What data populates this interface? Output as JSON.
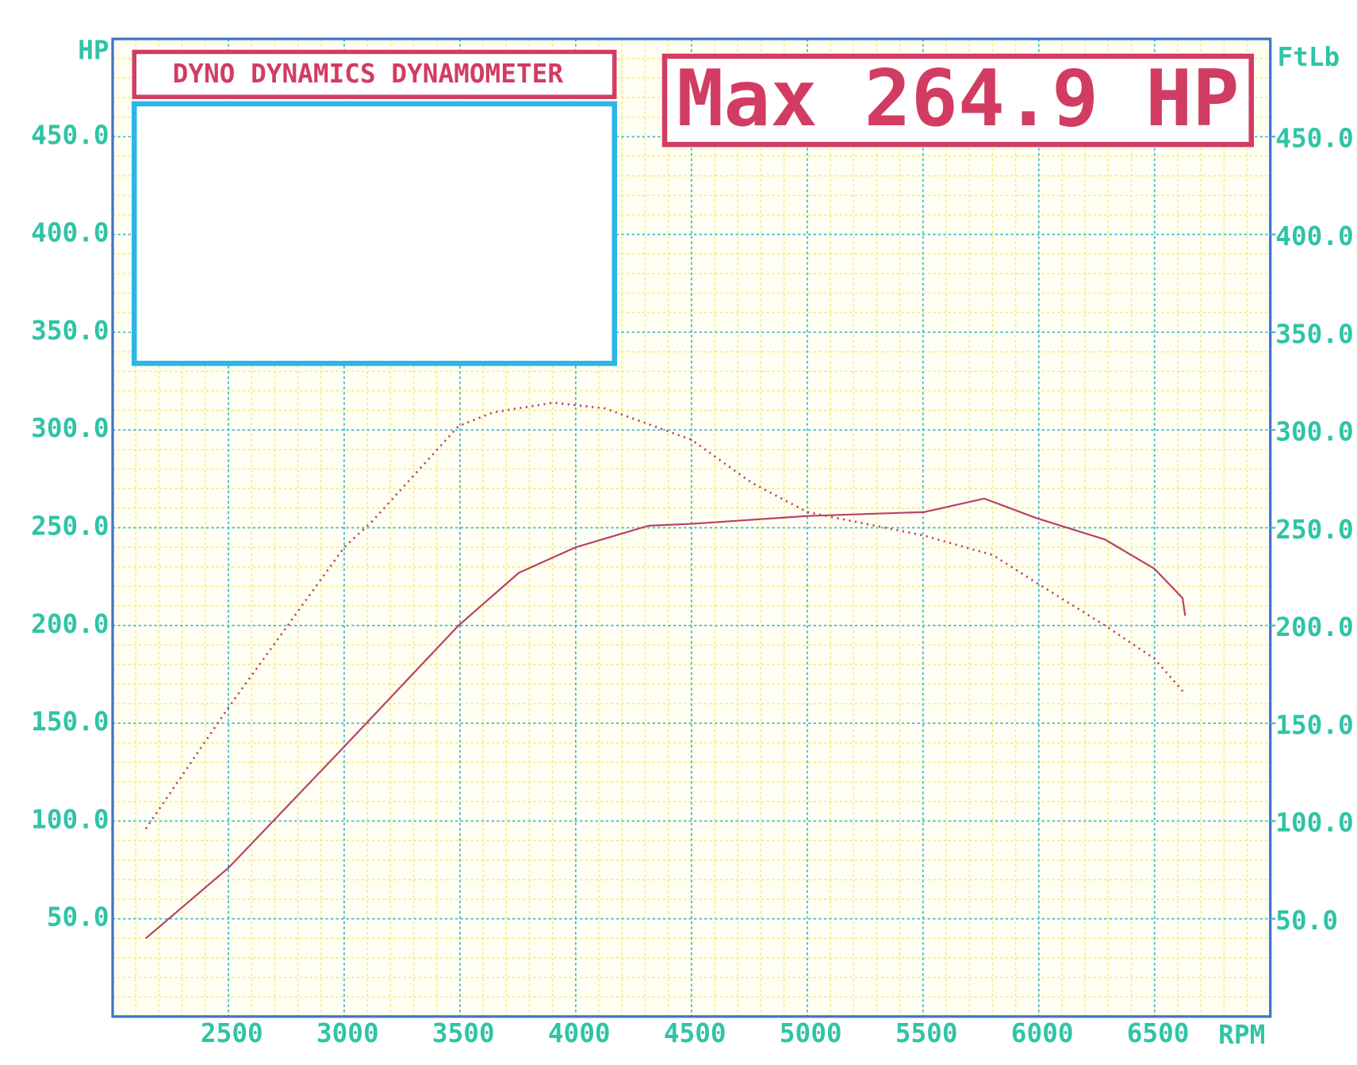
{
  "chart_data": {
    "type": "line",
    "title": "DYNO DYNAMICS DYNAMOMETER",
    "subtitle": "Max 264.9 HP",
    "x_label": "RPM",
    "y_label": "HP",
    "y2_label": "FtLb",
    "xlim": [
      2000,
      7000
    ],
    "xticks": [
      2500,
      3000,
      3500,
      4000,
      4500,
      5000,
      5500,
      6000,
      6500
    ],
    "ylim": [
      0,
      500
    ],
    "yticks": [
      {
        "value": 50,
        "label": "50.0"
      },
      {
        "value": 100,
        "label": "100.0"
      },
      {
        "value": 150,
        "label": "150.0"
      },
      {
        "value": 200,
        "label": "200.0"
      },
      {
        "value": 250,
        "label": "250.0"
      },
      {
        "value": 300,
        "label": "300.0"
      },
      {
        "value": 350,
        "label": "350.0"
      },
      {
        "value": 400,
        "label": "400.0"
      },
      {
        "value": 450,
        "label": "450.0"
      }
    ],
    "y2lim": [
      0,
      500
    ],
    "y2ticks": [
      {
        "value": 50,
        "label": "50.0"
      },
      {
        "value": 100,
        "label": "100.0"
      },
      {
        "value": 150,
        "label": "150.0"
      },
      {
        "value": 200,
        "label": "200.0"
      },
      {
        "value": 250,
        "label": "250.0"
      },
      {
        "value": 300,
        "label": "300.0"
      },
      {
        "value": 350,
        "label": "350.0"
      },
      {
        "value": 400,
        "label": "400.0"
      },
      {
        "value": 450,
        "label": "450.0"
      }
    ],
    "grid": true,
    "series": [
      {
        "color": "#b8406a",
        "style": "solid",
        "x": [
          2143,
          2500,
          3000,
          3494,
          3755,
          4000,
          4313,
          4500,
          5000,
          5504,
          5765,
          5988,
          6286,
          6500,
          6621,
          6632
        ],
        "values": [
          40,
          76,
          138,
          200,
          227,
          240,
          251,
          252,
          256,
          258,
          264.9,
          255,
          244,
          229,
          214,
          205
        ]
      },
      {
        "color": "#b8406a",
        "style": "dotted",
        "axis": "y2",
        "x": [
          2143,
          2500,
          3000,
          3119,
          3494,
          3643,
          3904,
          4127,
          4500,
          4760,
          5000,
          5504,
          5802,
          5988,
          6286,
          6500,
          6632
        ],
        "values": [
          96,
          158,
          240,
          253,
          302,
          309,
          314,
          311,
          295,
          273,
          258,
          246,
          236,
          222,
          200,
          183,
          165
        ]
      }
    ]
  }
}
